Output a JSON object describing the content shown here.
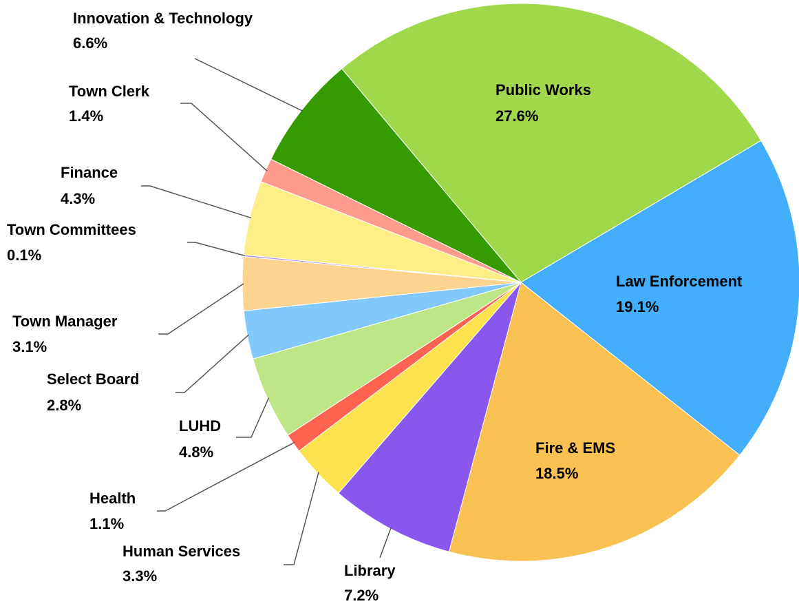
{
  "chart_data": {
    "type": "pie",
    "categories": [
      "Public Works",
      "Law Enforcement",
      "Fire & EMS",
      "Library",
      "Human Services",
      "Health",
      "LUHD",
      "Select Board",
      "Town Manager",
      "Town Committees",
      "Finance",
      "Town Clerk",
      "Innovation & Technology"
    ],
    "values": [
      27.6,
      19.1,
      18.5,
      7.2,
      3.3,
      1.1,
      4.8,
      2.8,
      3.1,
      0.1,
      4.3,
      1.4,
      6.6
    ],
    "value_labels": [
      "27.6%",
      "19.1%",
      "18.5%",
      "7.2%",
      "3.3%",
      "1.1%",
      "4.8%",
      "2.8%",
      "3.1%",
      "0.1%",
      "4.3%",
      "1.4%",
      "6.6%"
    ],
    "colors": [
      "#9fd84b",
      "#42aefc",
      "#f9c152",
      "#8a57ee",
      "#fde24f",
      "#fe6352",
      "#bde686",
      "#81c9fc",
      "#fcd48f",
      "#b28ef5",
      "#feee88",
      "#fd9b8f",
      "#359b00"
    ]
  }
}
